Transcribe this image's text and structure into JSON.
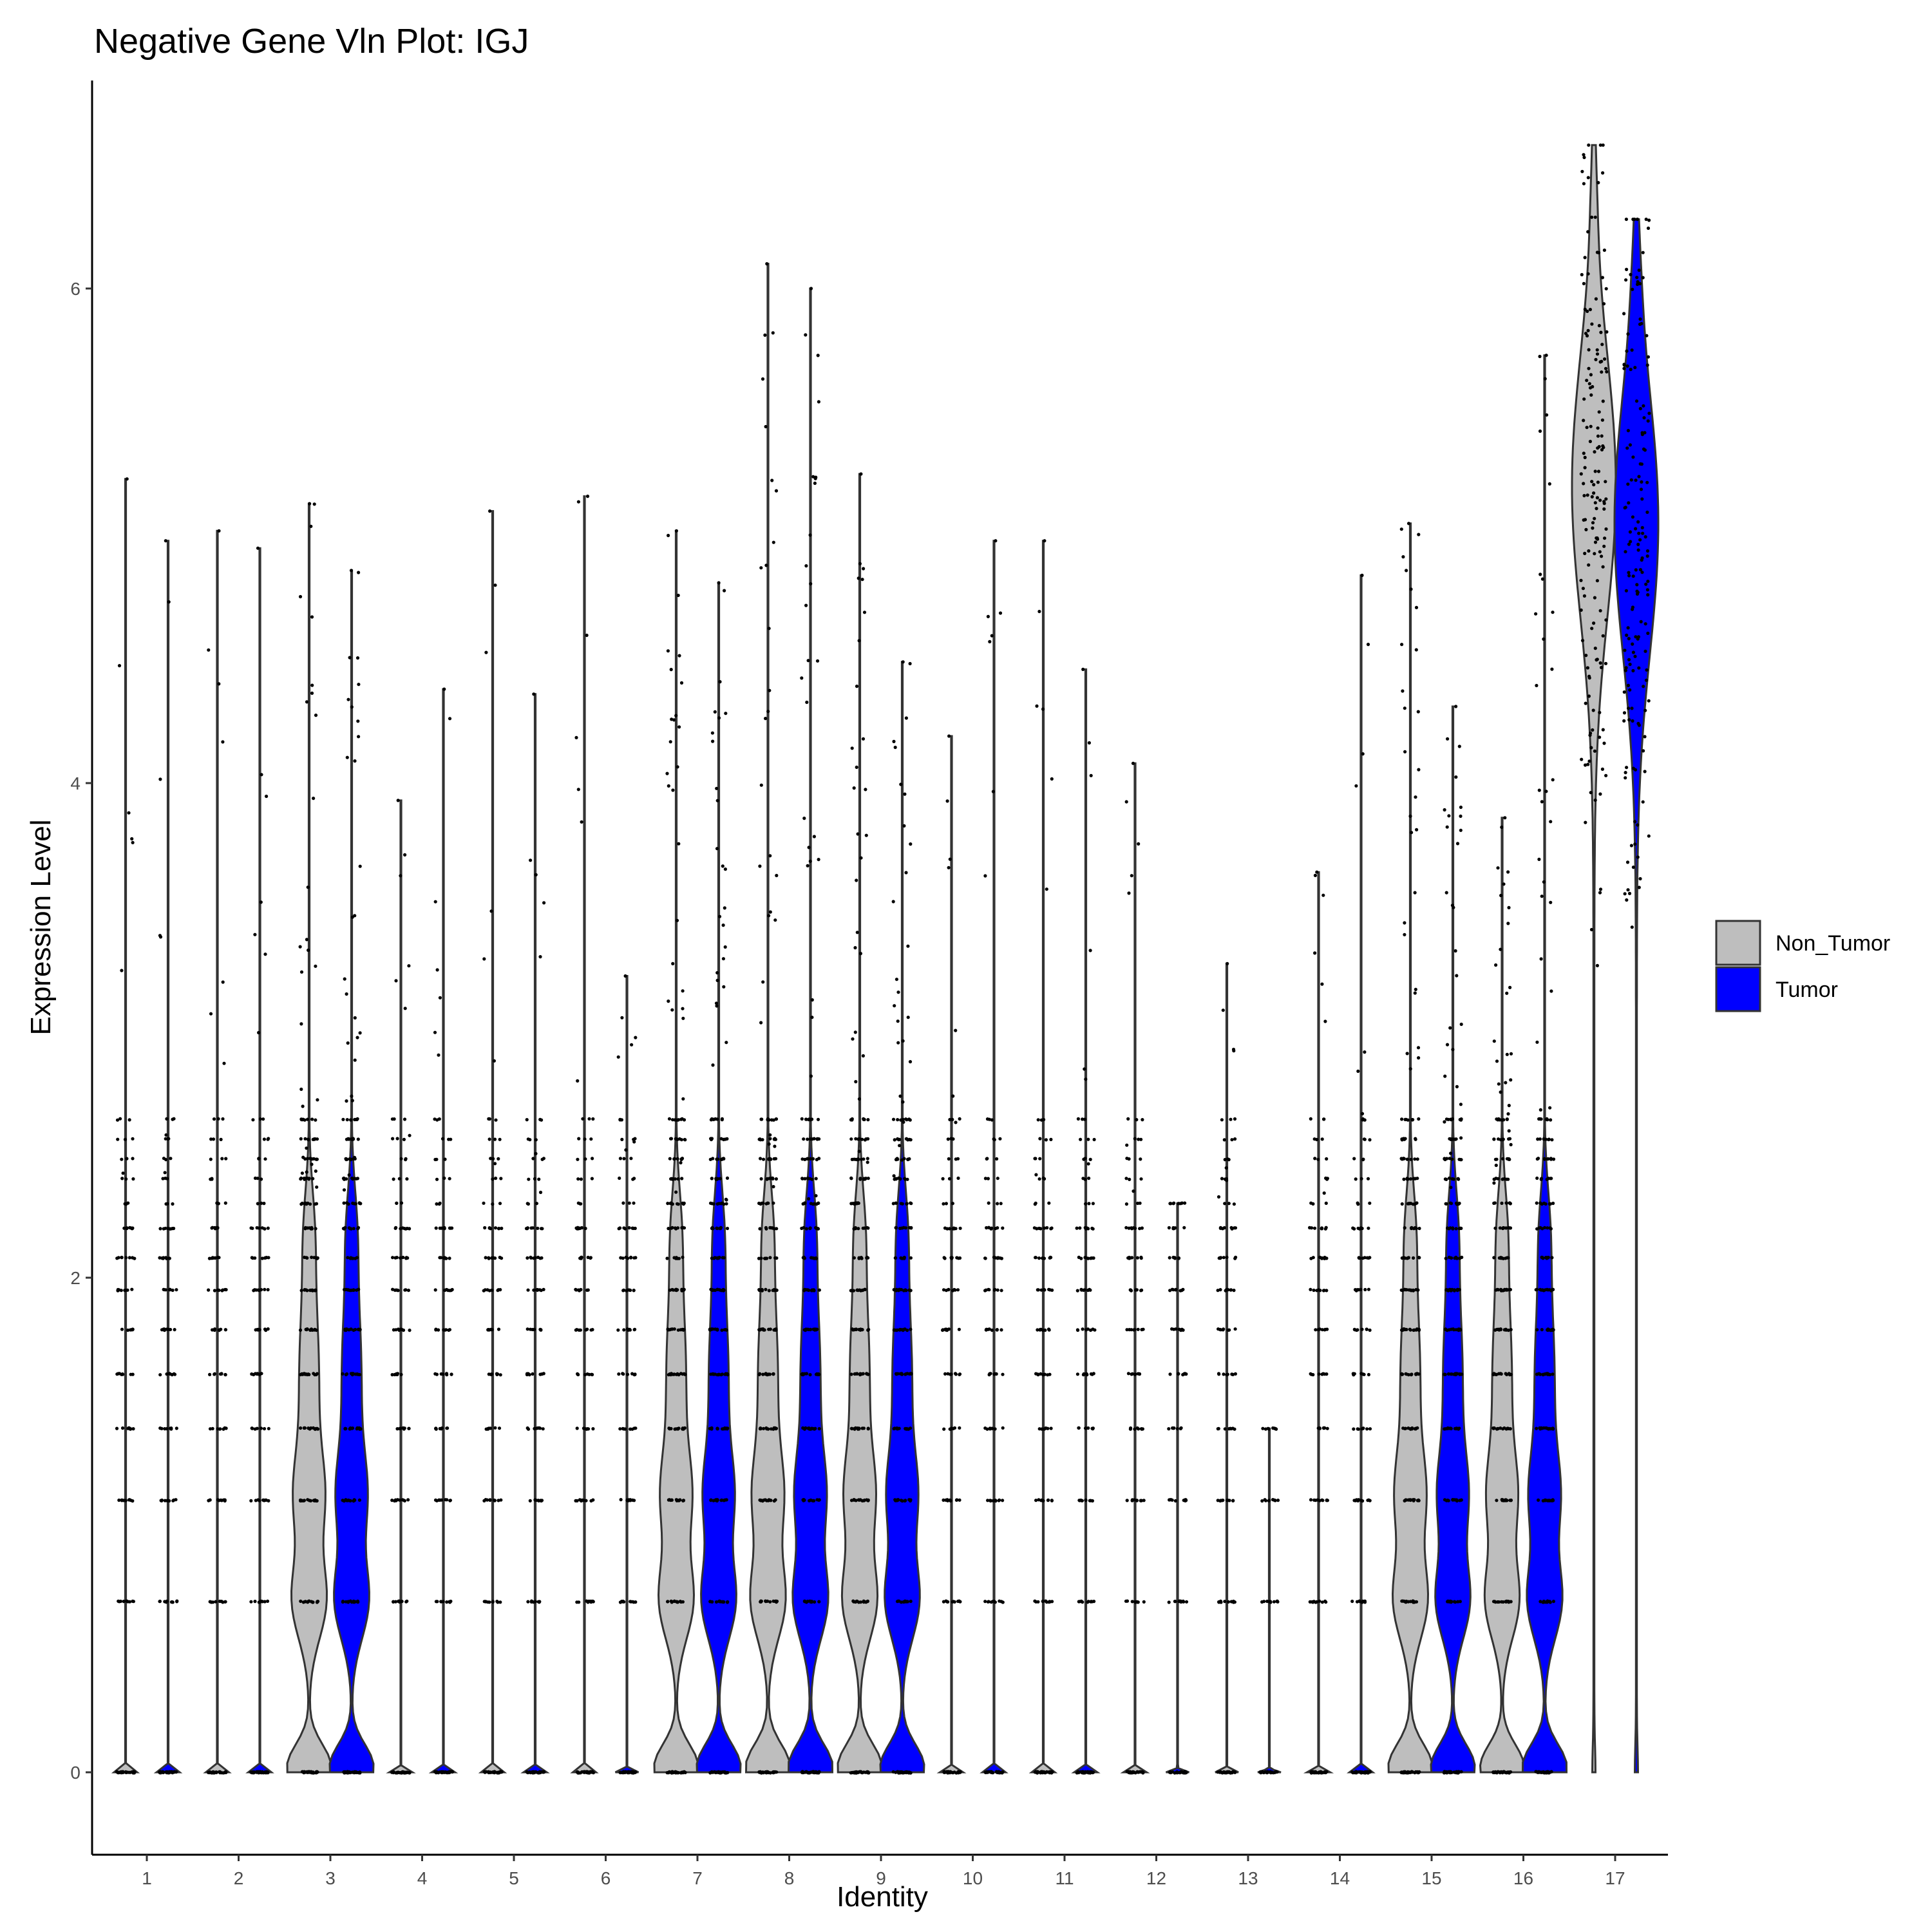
{
  "chart_data": {
    "type": "violin",
    "title": "Negative Gene Vln Plot: IGJ",
    "xlabel": "Identity",
    "ylabel": "Expression Level",
    "categories": [
      "1",
      "2",
      "3",
      "4",
      "5",
      "6",
      "7",
      "8",
      "9",
      "10",
      "11",
      "12",
      "13",
      "14",
      "15",
      "16",
      "17"
    ],
    "ylim": [
      -0.33,
      6.95
    ],
    "yticks": [
      0,
      2,
      4,
      6
    ],
    "grid": false,
    "legend_position": "right",
    "legend": [
      {
        "name": "Non_Tumor",
        "color": "#bebebe"
      },
      {
        "name": "Tumor",
        "color": "#0000ff"
      }
    ],
    "common_levels": [
      0,
      0.69,
      1.1,
      1.39,
      1.61,
      1.79,
      1.95,
      2.08,
      2.2,
      2.3,
      2.4,
      2.48,
      2.56,
      2.64
    ],
    "series": [
      {
        "name": "Non_Tumor",
        "color": "#bebebe",
        "max": [
          5.23,
          5.02,
          5.13,
          3.93,
          5.1,
          5.16,
          5.02,
          6.1,
          5.25,
          4.19,
          4.98,
          4.08,
          3.27,
          3.64,
          5.05,
          3.86,
          6.58
        ],
        "median": [
          0,
          0,
          0.69,
          0,
          0,
          0,
          0.69,
          0.69,
          0.69,
          0,
          0,
          0,
          0,
          0,
          0.69,
          0.69,
          5.2
        ],
        "density_shape": [
          "spike",
          "spike",
          "wide",
          "spike",
          "spike",
          "spike",
          "wide",
          "wide",
          "wide",
          "spike",
          "spike",
          "spike",
          "spike",
          "spike",
          "wide",
          "wide",
          "high"
        ]
      },
      {
        "name": "Tumor",
        "color": "#0000ff",
        "max": [
          4.98,
          4.95,
          4.86,
          4.38,
          4.36,
          3.22,
          4.81,
          6.0,
          4.49,
          4.98,
          4.46,
          2.3,
          1.39,
          4.84,
          4.31,
          5.73,
          6.28
        ],
        "median": [
          0,
          0,
          0.69,
          0,
          0,
          0,
          0.69,
          0.69,
          0.69,
          0,
          0,
          0,
          0,
          0,
          0.69,
          0.69,
          5.05
        ],
        "density_shape": [
          "spike",
          "spike",
          "wide",
          "spike",
          "spike",
          "spike",
          "wide",
          "wide",
          "wide",
          "spike",
          "spike",
          "spike",
          "spike",
          "spike",
          "wide",
          "wide",
          "high"
        ]
      }
    ]
  }
}
